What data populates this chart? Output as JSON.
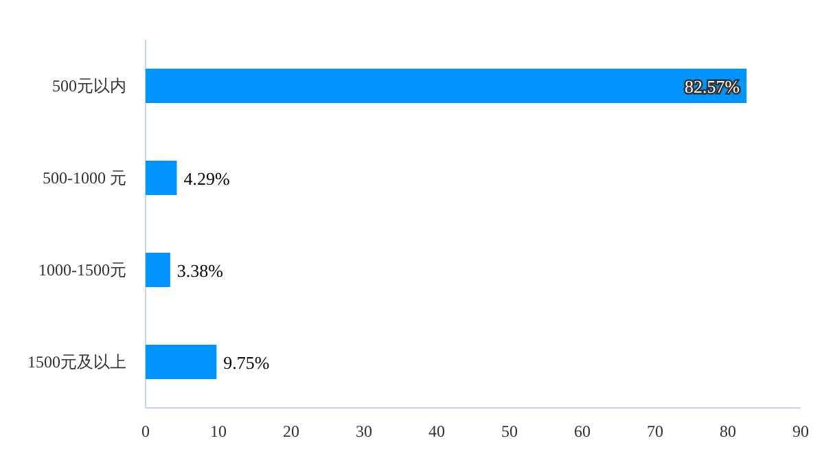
{
  "chart_data": {
    "type": "bar",
    "orientation": "horizontal",
    "categories": [
      "500元以内",
      "500-1000 元",
      "1000-1500元",
      "1500元及以上"
    ],
    "values": [
      82.57,
      4.29,
      3.38,
      9.75
    ],
    "value_labels": [
      "82.57%",
      "4.29%",
      "3.38%",
      "9.75%"
    ],
    "color": "#0094ff",
    "xlim": [
      0,
      90
    ],
    "xticks": [
      0,
      10,
      20,
      30,
      40,
      50,
      60,
      70,
      80,
      90
    ]
  }
}
